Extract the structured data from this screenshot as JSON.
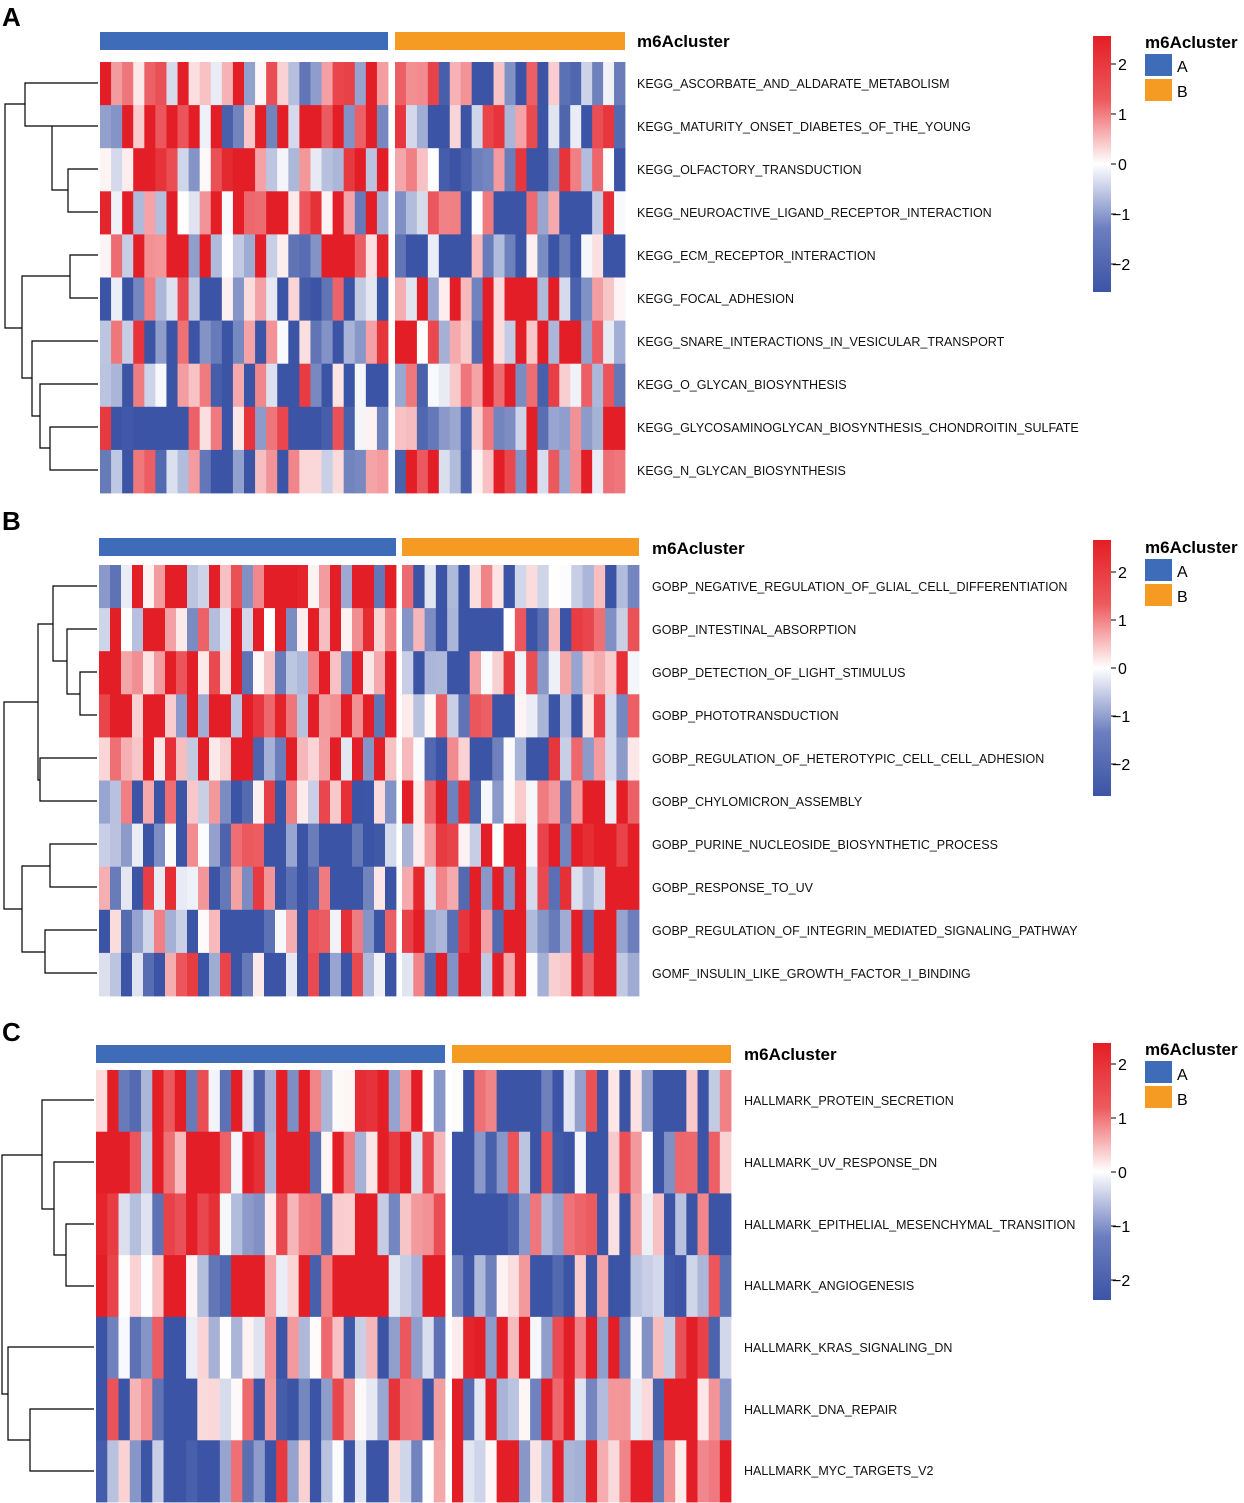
{
  "colors": {
    "low": "#3b54a5",
    "mid": "#ffffff",
    "high": "#e41e26",
    "cluster_A": "#3f6cb8",
    "cluster_B": "#f59a23"
  },
  "chart_data": [
    {
      "type": "heatmap",
      "panel_label": "A",
      "annotation_title": "m6Acluster",
      "n_columns": {
        "A": 26,
        "B": 21
      },
      "rows": [
        "KEGG_ASCORBATE_AND_ALDARATE_METABOLISM",
        "KEGG_MATURITY_ONSET_DIABETES_OF_THE_YOUNG",
        "KEGG_OLFACTORY_TRANSDUCTION",
        "KEGG_NEUROACTIVE_LIGAND_RECEPTOR_INTERACTION",
        "KEGG_ECM_RECEPTOR_INTERACTION",
        "KEGG_FOCAL_ADHESION",
        "KEGG_SNARE_INTERACTIONS_IN_VESICULAR_TRANSPORT",
        "KEGG_O_GLYCAN_BIOSYNTHESIS",
        "KEGG_GLYCOSAMINOGLYCAN_BIOSYNTHESIS_CHONDROITIN_SULFATE",
        "KEGG_N_GLYCAN_BIOSYNTHESIS"
      ],
      "legend": {
        "title": "m6Acluster",
        "entries": [
          "A",
          "B"
        ],
        "scale_ticks": [
          "2",
          "1",
          "0",
          "−1",
          "−2"
        ],
        "range": [
          -2.5,
          2.5
        ]
      }
    },
    {
      "type": "heatmap",
      "panel_label": "B",
      "annotation_title": "m6Acluster",
      "n_columns": {
        "A": 27,
        "B": 21
      },
      "rows": [
        "GOBP_NEGATIVE_REGULATION_OF_GLIAL_CELL_DIFFERENTIATION",
        "GOBP_INTESTINAL_ABSORPTION",
        "GOBP_DETECTION_OF_LIGHT_STIMULUS",
        "GOBP_PHOTOTRANSDUCTION",
        "GOBP_REGULATION_OF_HETEROTYPIC_CELL_CELL_ADHESION",
        "GOBP_CHYLOMICRON_ASSEMBLY",
        "GOBP_PURINE_NUCLEOSIDE_BIOSYNTHETIC_PROCESS",
        "GOBP_RESPONSE_TO_UV",
        "GOBP_REGULATION_OF_INTEGRIN_MEDIATED_SIGNALING_PATHWAY",
        "GOMF_INSULIN_LIKE_GROWTH_FACTOR_I_BINDING"
      ],
      "legend": {
        "title": "m6Acluster",
        "entries": [
          "A",
          "B"
        ],
        "scale_ticks": [
          "2",
          "1",
          "0",
          "−1",
          "−2"
        ],
        "range": [
          -2.5,
          2.5
        ]
      }
    },
    {
      "type": "heatmap",
      "panel_label": "C",
      "annotation_title": "m6Acluster",
      "n_columns": {
        "A": 31,
        "B": 25
      },
      "rows": [
        "HALLMARK_PROTEIN_SECRETION",
        "HALLMARK_UV_RESPONSE_DN",
        "HALLMARK_EPITHELIAL_MESENCHYMAL_TRANSITION",
        "HALLMARK_ANGIOGENESIS",
        "HALLMARK_KRAS_SIGNALING_DN",
        "HALLMARK_DNA_REPAIR",
        "HALLMARK_MYC_TARGETS_V2"
      ],
      "legend": {
        "title": "m6Acluster",
        "entries": [
          "A",
          "B"
        ],
        "scale_ticks": [
          "2",
          "1",
          "0",
          "−1",
          "−2"
        ],
        "range": [
          -2.5,
          2.5
        ]
      }
    }
  ]
}
